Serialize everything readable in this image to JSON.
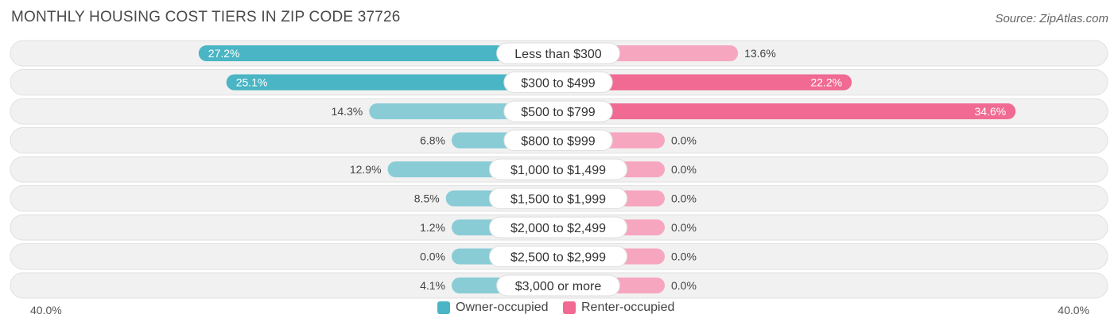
{
  "title": "MONTHLY HOUSING COST TIERS IN ZIP CODE 37726",
  "source": "Source: ZipAtlas.com",
  "colors": {
    "owner_dark": "#4ab5c4",
    "owner_light": "#89ccd6",
    "renter_dark": "#f06a93",
    "renter_light": "#f7a6c0",
    "row_bg": "#f1f1f1",
    "row_border": "#e0e0e0"
  },
  "legend": {
    "owner": "Owner-occupied",
    "renter": "Renter-occupied"
  },
  "axis": {
    "left_label": "40.0%",
    "right_label": "40.0%"
  },
  "chart_data": {
    "type": "bar",
    "orientation": "horizontal-diverging",
    "axis_max": 40.0,
    "categories": [
      "Less than $300",
      "$300 to $499",
      "$500 to $799",
      "$800 to $999",
      "$1,000 to $1,499",
      "$1,500 to $1,999",
      "$2,000 to $2,499",
      "$2,500 to $2,999",
      "$3,000 or more"
    ],
    "series": [
      {
        "name": "Owner-occupied",
        "values": [
          27.2,
          25.1,
          14.3,
          6.8,
          12.9,
          8.5,
          1.2,
          0.0,
          4.1
        ],
        "labels": [
          "27.2%",
          "25.1%",
          "14.3%",
          "6.8%",
          "12.9%",
          "8.5%",
          "1.2%",
          "0.0%",
          "4.1%"
        ]
      },
      {
        "name": "Renter-occupied",
        "values": [
          13.6,
          22.2,
          34.6,
          0.0,
          0.0,
          0.0,
          0.0,
          0.0,
          0.0
        ],
        "labels": [
          "13.6%",
          "22.2%",
          "34.6%",
          "0.0%",
          "0.0%",
          "0.0%",
          "0.0%",
          "0.0%",
          "0.0%"
        ]
      }
    ]
  }
}
